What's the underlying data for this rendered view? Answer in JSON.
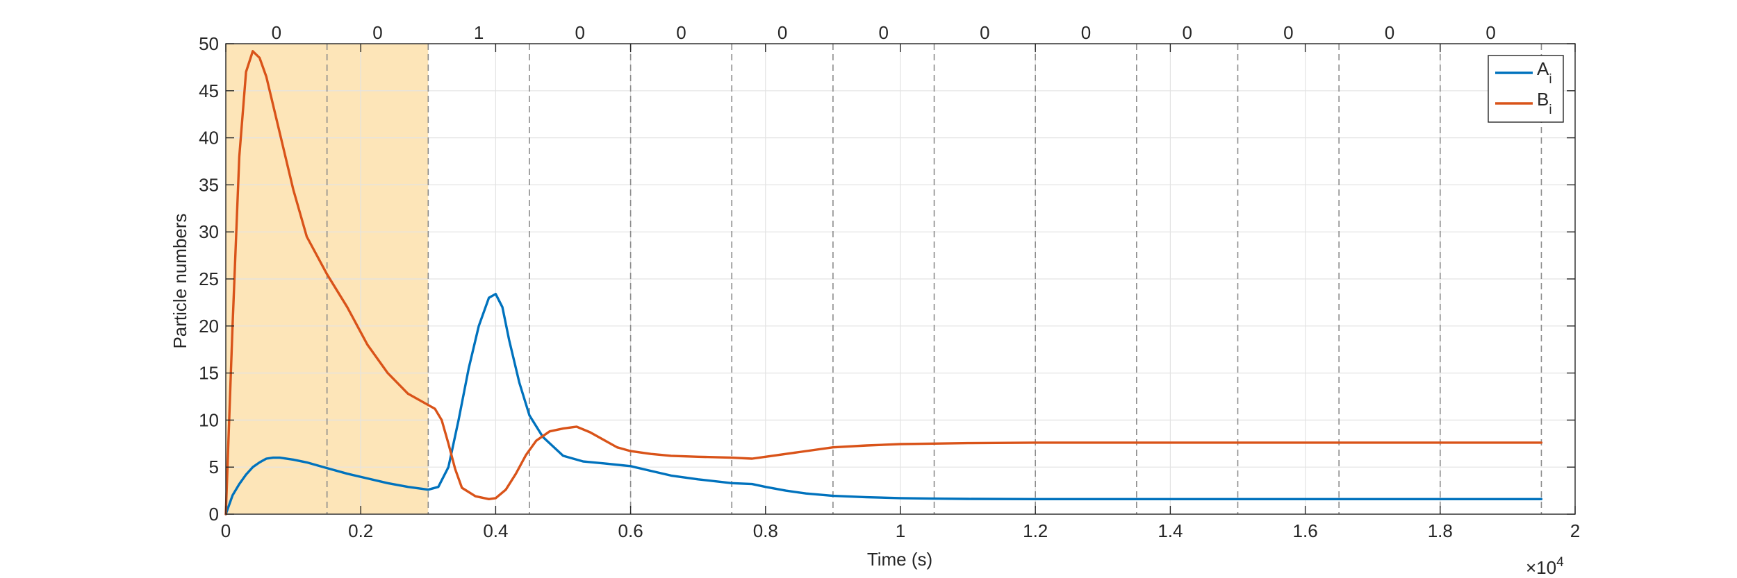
{
  "chart_data": {
    "type": "line",
    "xlabel": "Time (s)",
    "ylabel": "Particle numbers",
    "x_exponent_label": "×10",
    "x_exponent_power": "4",
    "xlim": [
      0,
      20000
    ],
    "ylim": [
      0,
      50
    ],
    "xticks": [
      0,
      2000,
      4000,
      6000,
      8000,
      10000,
      12000,
      14000,
      16000,
      18000,
      20000
    ],
    "xtick_labels": [
      "0",
      "0.2",
      "0.4",
      "0.6",
      "0.8",
      "1",
      "1.2",
      "1.4",
      "1.6",
      "1.8",
      "2"
    ],
    "yticks": [
      0,
      5,
      10,
      15,
      20,
      25,
      30,
      35,
      40,
      45,
      50
    ],
    "ytick_labels": [
      "0",
      "5",
      "10",
      "15",
      "20",
      "25",
      "30",
      "35",
      "40",
      "45",
      "50"
    ],
    "grid": true,
    "legend_position": "top-right",
    "shaded_interval": {
      "x": [
        0,
        3000
      ],
      "color": "#fde5b8"
    },
    "vertical_dashed_lines": [
      1500,
      3000,
      4500,
      6000,
      7500,
      9000,
      10500,
      12000,
      13500,
      15000,
      16500,
      18000,
      19500
    ],
    "segment_labels": [
      {
        "x": 750,
        "text": "0"
      },
      {
        "x": 2250,
        "text": "0"
      },
      {
        "x": 3750,
        "text": "1"
      },
      {
        "x": 5250,
        "text": "0"
      },
      {
        "x": 6750,
        "text": "0"
      },
      {
        "x": 8250,
        "text": "0"
      },
      {
        "x": 9750,
        "text": "0"
      },
      {
        "x": 11250,
        "text": "0"
      },
      {
        "x": 12750,
        "text": "0"
      },
      {
        "x": 14250,
        "text": "0"
      },
      {
        "x": 15750,
        "text": "0"
      },
      {
        "x": 17250,
        "text": "0"
      },
      {
        "x": 18750,
        "text": "0"
      }
    ],
    "series": [
      {
        "name": "A",
        "name_subscript": "i",
        "color": "#0072bd",
        "x": [
          0,
          100,
          200,
          300,
          400,
          500,
          600,
          700,
          800,
          1000,
          1200,
          1500,
          1800,
          2100,
          2400,
          2700,
          3000,
          3150,
          3300,
          3450,
          3600,
          3750,
          3900,
          4000,
          4100,
          4200,
          4350,
          4500,
          4700,
          5000,
          5300,
          5600,
          6000,
          6300,
          6600,
          7000,
          7500,
          7800,
          8000,
          8300,
          8600,
          9000,
          9500,
          10000,
          10500,
          11000,
          12000,
          13000,
          14000,
          15000,
          16000,
          17000,
          18000,
          19500
        ],
        "y": [
          0,
          2.0,
          3.2,
          4.2,
          5.0,
          5.5,
          5.9,
          6.0,
          6.0,
          5.8,
          5.5,
          4.9,
          4.3,
          3.8,
          3.3,
          2.9,
          2.6,
          2.9,
          5.0,
          10.0,
          15.5,
          20.0,
          23.0,
          23.4,
          22.0,
          18.5,
          14.0,
          10.5,
          8.2,
          6.2,
          5.6,
          5.4,
          5.1,
          4.6,
          4.1,
          3.7,
          3.3,
          3.2,
          2.9,
          2.5,
          2.2,
          1.95,
          1.8,
          1.7,
          1.65,
          1.62,
          1.6,
          1.6,
          1.6,
          1.6,
          1.6,
          1.6,
          1.6,
          1.6
        ]
      },
      {
        "name": "B",
        "name_subscript": "i",
        "color": "#d95319",
        "x": [
          0,
          100,
          200,
          300,
          400,
          500,
          600,
          800,
          1000,
          1200,
          1500,
          1800,
          2100,
          2400,
          2700,
          3000,
          3100,
          3200,
          3300,
          3400,
          3500,
          3700,
          3900,
          4000,
          4150,
          4300,
          4450,
          4600,
          4800,
          5000,
          5200,
          5400,
          5600,
          5800,
          6000,
          6300,
          6600,
          7000,
          7500,
          7800,
          8000,
          8500,
          9000,
          9500,
          10000,
          10500,
          11000,
          12000,
          13000,
          14000,
          15000,
          16000,
          17000,
          18000,
          19500
        ],
        "y": [
          0,
          20.0,
          38.0,
          47.0,
          49.2,
          48.5,
          46.5,
          40.5,
          34.5,
          29.5,
          25.5,
          22.0,
          18.0,
          15.0,
          12.8,
          11.6,
          11.2,
          10.0,
          7.5,
          4.8,
          2.8,
          1.9,
          1.6,
          1.7,
          2.6,
          4.3,
          6.3,
          7.8,
          8.8,
          9.1,
          9.3,
          8.7,
          7.9,
          7.1,
          6.7,
          6.4,
          6.2,
          6.1,
          6.0,
          5.9,
          6.1,
          6.6,
          7.1,
          7.3,
          7.45,
          7.5,
          7.55,
          7.6,
          7.6,
          7.6,
          7.6,
          7.6,
          7.6,
          7.6,
          7.6
        ]
      }
    ]
  }
}
